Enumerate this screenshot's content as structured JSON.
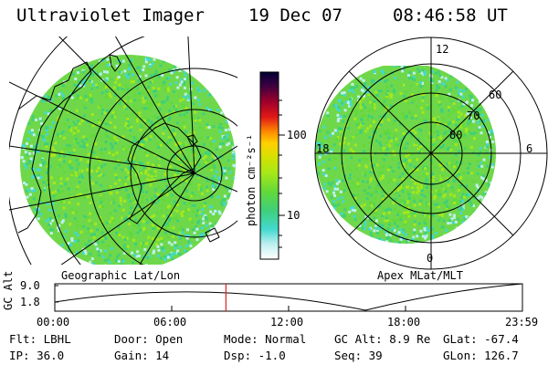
{
  "header": {
    "instrument": "Ultraviolet Imager",
    "date": "19 Dec 07",
    "time": "08:46:58 UT"
  },
  "left_panel": {
    "caption": "Geographic Lat/Lon"
  },
  "right_panel": {
    "caption": "Apex MLat/MLT",
    "mlt_labels": [
      "12",
      "18",
      "6",
      "0"
    ],
    "mlat_labels": [
      "60",
      "70",
      "80"
    ]
  },
  "colorbar": {
    "unit": "photon cm⁻²s⁻¹",
    "ticks": [
      "100",
      "10"
    ],
    "scale": "log",
    "colors": [
      "#ffffff",
      "#bfeff0",
      "#43d9cf",
      "#3fd07a",
      "#62d93a",
      "#a6e818",
      "#d8e000",
      "#ffd000",
      "#ff8c00",
      "#e01818",
      "#a0002a",
      "#3a0040",
      "#000033"
    ]
  },
  "altitude_plot": {
    "ylabel": "GC Alt",
    "yticks": [
      "9.0",
      "1.8"
    ],
    "xticks": [
      "00:00",
      "06:00",
      "12:00",
      "18:00",
      "23:59"
    ],
    "current_time_hours": 8.783
  },
  "status": {
    "flt": "Flt: LBHL",
    "ip": "IP: 36.0",
    "door": "Door: Open",
    "gain": "Gain: 14",
    "mode": "Mode: Normal",
    "dsp": "Dsp:    -1.0",
    "gc_alt": "GC Alt: 8.9 Re",
    "seq": "Seq: 39",
    "glat": "GLat: -67.4",
    "glon": "GLon: 126.7"
  }
}
